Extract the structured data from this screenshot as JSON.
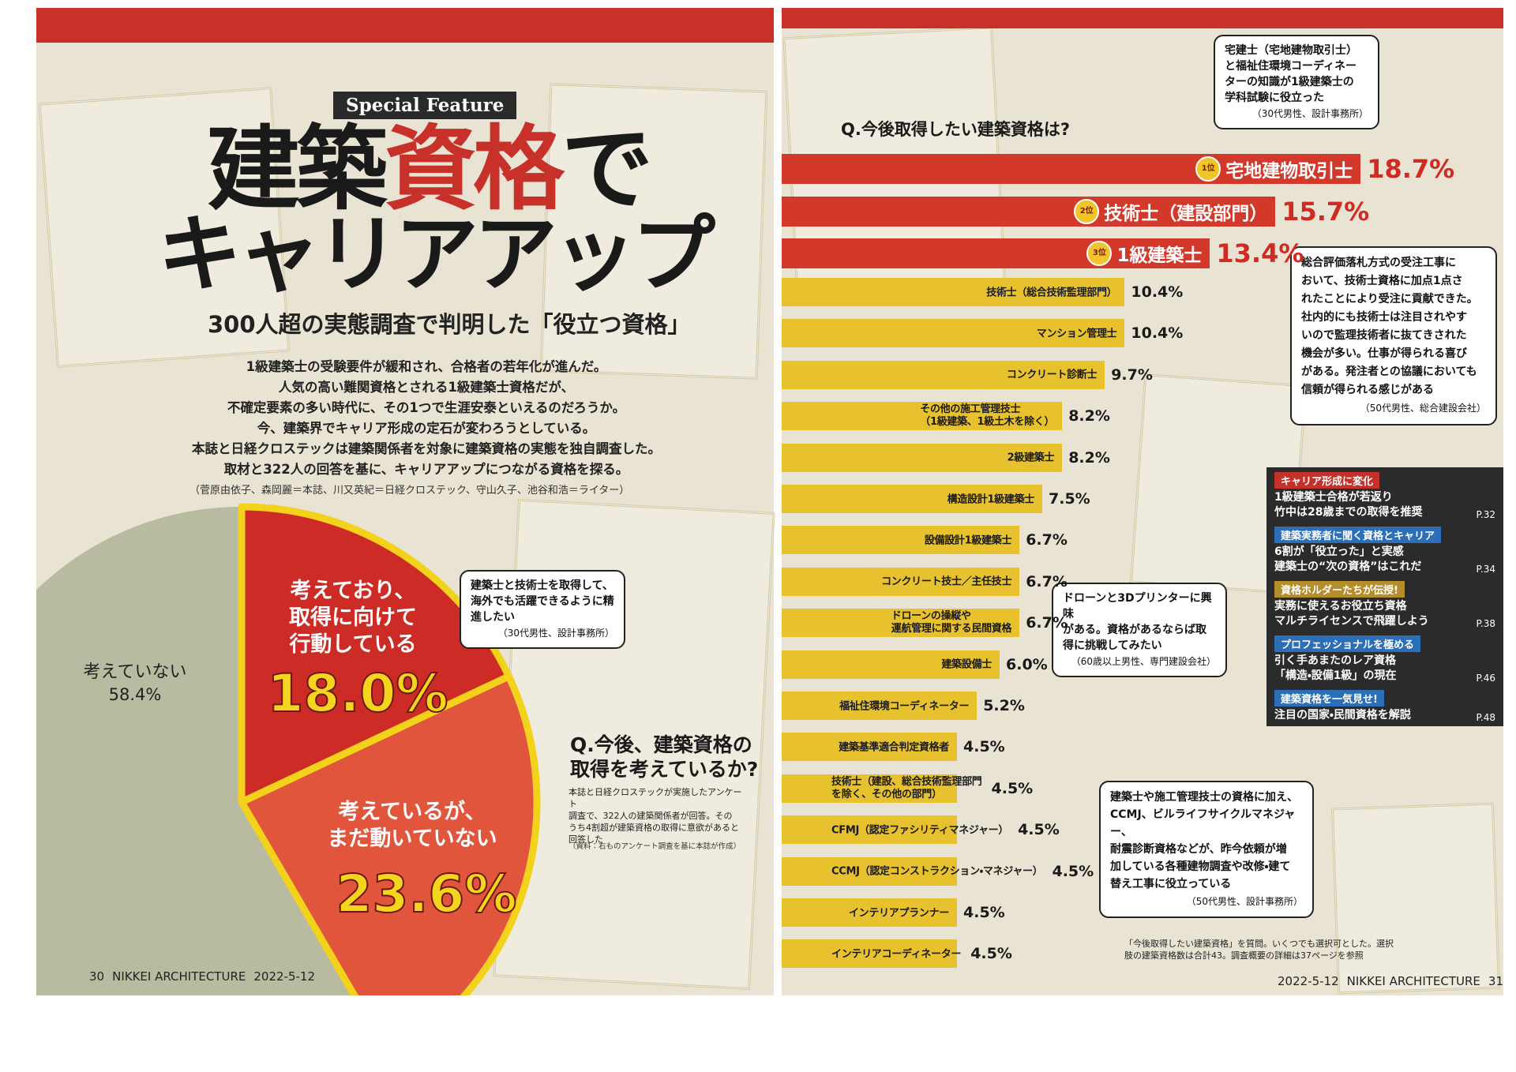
{
  "left_page": {
    "badge": "Special Feature",
    "title": {
      "line1": [
        "建築",
        "資格",
        "で"
      ],
      "line2": "キャリアアップ"
    },
    "subtitle": "300人超の実態調査で判明した「役立つ資格」",
    "lead": "1級建築士の受験要件が緩和され、合格者の若年化が進んだ。\n人気の高い難関資格とされる1級建築士資格だが、\n不確定要素の多い時代に、その1つで生涯安泰といえるのだろうか。\n今、建築界でキャリア形成の定石が変わろうとしている。\n本誌と日経クロステックは建築関係者を対象に建築資格の実態を独自調査した。\n取材と322人の回答を基に、キャリアアップにつながる資格を探る。",
    "credit": "（菅原由依子、森岡麗＝本誌、川又英紀＝日経クロステック、守山久子、池谷和浩＝ライター）",
    "quote": {
      "text": "建築士と技術士を取得して、\n海外でも活躍できるように精\n進したい",
      "source": "（30代男性、設計事務所）"
    },
    "footer": {
      "page": "30",
      "magazine": "NIKKEI ARCHITECTURE",
      "date": "2022-5-12"
    }
  },
  "right_page": {
    "quotes": [
      {
        "text": "宅建士（宅地建物取引士）\nと福祉住環境コーディネー\nターの知識が1級建築士の\n学科試験に役立った",
        "source": "（30代男性、設計事務所）"
      },
      {
        "text": "総合評価落札方式の受注工事に\nおいて、技術士資格に加点1点さ\nれたことにより受注に貢献できた。\n社内的にも技術士は注目されやす\nいので監理技術者に抜てきされた\n機会が多い。仕事が得られる喜び\nがある。発注者との協議においても\n信頼が得られる感じがある",
        "source": "（50代男性、総合建設会社）"
      },
      {
        "text": "ドローンと3Dプリンターに興味\nがある。資格があるならば取\n得に挑戦してみたい",
        "source": "（60歳以上男性、専門建設会社）"
      },
      {
        "text": "建築士や施工管理技士の資格に加え、\nCCMJ、ビルライフサイクルマネジャー、\n耐震診断資格などが、昨今依頼が増\n加している各種建物調査や改修・建て\n替え工事に役立っている",
        "source": "（50代男性、設計事務所）"
      }
    ],
    "sidebar": [
      {
        "tag": "キャリア形成に変化",
        "color": "#c4312a",
        "text": "1級建築士合格が若返り\n竹中は28歳までの取得を推奨",
        "page": "P.32"
      },
      {
        "tag": "建築実務者に聞く資格とキャリア",
        "color": "#2a6fb8",
        "text": "6割が「役立った」と実感\n建築士の“次の資格”はこれだ",
        "page": "P.34"
      },
      {
        "tag": "資格ホルダーたちが伝授!",
        "color": "#b58d2a",
        "text": "実務に使えるお役立ち資格\nマルチライセンスで飛躍しよう",
        "page": "P.38"
      },
      {
        "tag": "プロフェッショナルを極める",
        "color": "#2a6fb8",
        "text": "引く手あまたのレア資格\n「構造・設備1級」の現在",
        "page": "P.46"
      },
      {
        "tag": "建築資格を一気見せ!",
        "color": "#2a6fb8",
        "text": "注目の国家・民間資格を解説",
        "page": "P.48"
      }
    ],
    "note": "「今後取得したい建築資格」を質問。いくつでも選択可とした。選択\n肢の建築資格数は合計43。調査概要の詳細は37ページを参照",
    "footer": {
      "date": "2022-5-12",
      "magazine": "NIKKEI ARCHITECTURE",
      "page": "31"
    }
  },
  "chart_data": [
    {
      "type": "pie",
      "title": "Q.今後、建築資格の\n取得を考えているか?",
      "categories": [
        "考えており、\n取得に向けて\n行動している",
        "考えているが、\nまだ動いていない",
        "考えていない"
      ],
      "values": [
        18.0,
        23.6,
        58.4
      ],
      "value_labels": [
        "18.0%",
        "23.6%",
        "58.4%"
      ],
      "colors": [
        "#cc2c25",
        "#e2553d",
        "#b8bb9f"
      ],
      "note": "本誌と日経クロステックが実施したアンケート\n調査で、322人の建築関係者が回答。その\nうち4割超が建築資格の取得に意欲があると\n回答した",
      "source": "（資料：右ものアンケート調査を基に本誌が作成）"
    },
    {
      "type": "bar",
      "title": "Q.今後取得したい建築資格は?",
      "categories": [
        "宅地建物取引士",
        "技術士（建設部門）",
        "1級建築士",
        "技術士（総合技術監理部門）",
        "マンション管理士",
        "コンクリート診断士",
        "その他の施工管理技士\n（1級建築、1級土木を除く）",
        "2級建築士",
        "構造設計1級建築士",
        "設備設計1級建築士",
        "コンクリート技士／主任技士",
        "ドローンの操縦や\n運航管理に関する民間資格",
        "建築設備士",
        "福祉住環境コーディネーター",
        "建築基準適合判定資格者",
        "技術士（建設、総合技術監理部門\nを除く、その他の部門）",
        "CFMJ（認定ファシリティマネジャー）",
        "CCMJ（認定コンストラクション・マネジャー）",
        "インテリアプランナー",
        "インテリアコーディネーター"
      ],
      "values": [
        18.7,
        15.7,
        13.4,
        10.4,
        10.4,
        9.7,
        8.2,
        8.2,
        7.5,
        6.7,
        6.7,
        6.7,
        6.0,
        5.2,
        4.5,
        4.5,
        4.5,
        4.5,
        4.5,
        4.5
      ],
      "value_labels": [
        "18.7%",
        "15.7%",
        "13.4%",
        "10.4%",
        "10.4%",
        "9.7%",
        "8.2%",
        "8.2%",
        "7.5%",
        "6.7%",
        "6.7%",
        "6.7%",
        "6.0%",
        "5.2%",
        "4.5%",
        "4.5%",
        "4.5%",
        "4.5%",
        "4.5%",
        "4.5%"
      ],
      "colors": [
        "#d3392b",
        "#d3392b",
        "#d3392b",
        "#e8c22e",
        "#e8c22e",
        "#e8c22e",
        "#e8c22e",
        "#e8c22e",
        "#e8c22e",
        "#e8c22e",
        "#e8c22e",
        "#e8c22e",
        "#e8c22e",
        "#e8c22e",
        "#e8c22e",
        "#e8c22e",
        "#e8c22e",
        "#e8c22e",
        "#e8c22e",
        "#e8c22e"
      ],
      "ranks": [
        "1位",
        "2位",
        "3位"
      ]
    }
  ]
}
